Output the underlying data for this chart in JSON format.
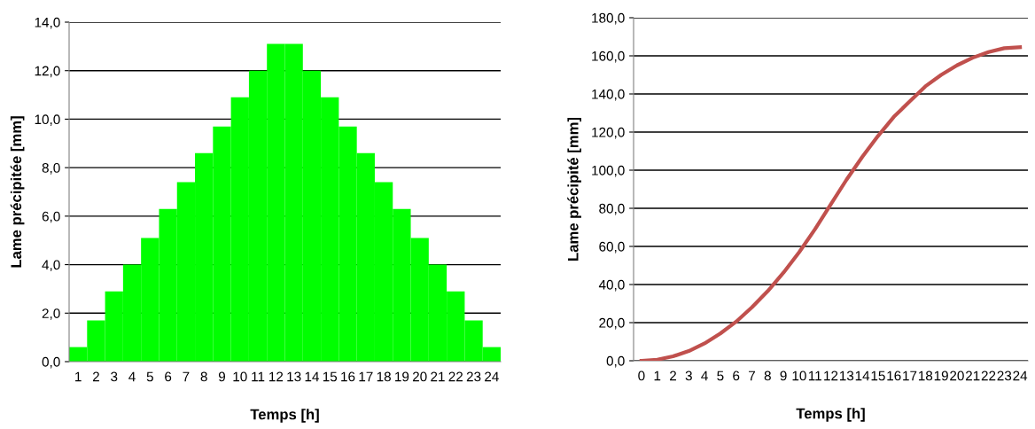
{
  "chart_data": [
    {
      "type": "bar",
      "xlabel": "Temps [h]",
      "ylabel": "Lame précipitée [mm]",
      "categories": [
        "1",
        "2",
        "3",
        "4",
        "5",
        "6",
        "7",
        "8",
        "9",
        "10",
        "11",
        "12",
        "13",
        "14",
        "15",
        "16",
        "17",
        "18",
        "19",
        "20",
        "21",
        "22",
        "23",
        "24"
      ],
      "values": [
        0.6,
        1.7,
        2.9,
        4.0,
        5.1,
        6.3,
        7.4,
        8.6,
        9.7,
        10.9,
        12.0,
        13.1,
        13.1,
        12.0,
        10.9,
        9.7,
        8.6,
        7.4,
        6.3,
        5.1,
        4.0,
        2.9,
        1.7,
        0.6
      ],
      "color": "#00ff00",
      "ylim": [
        0,
        14
      ],
      "yticks": [
        {
          "value": 0,
          "label": "0,0"
        },
        {
          "value": 2,
          "label": "2,0"
        },
        {
          "value": 4,
          "label": "4,0"
        },
        {
          "value": 6,
          "label": "6,0"
        },
        {
          "value": 8,
          "label": "8,0"
        },
        {
          "value": 10,
          "label": "10,0"
        },
        {
          "value": 12,
          "label": "12,0"
        },
        {
          "value": 14,
          "label": "14,0"
        }
      ],
      "grid": "y"
    },
    {
      "type": "line",
      "xlabel": "Temps [h]",
      "ylabel": "Lame précipité [mm]",
      "categories": [
        "0",
        "1",
        "2",
        "3",
        "4",
        "5",
        "6",
        "7",
        "8",
        "9",
        "10",
        "11",
        "12",
        "13",
        "14",
        "15",
        "16",
        "17",
        "18",
        "19",
        "20",
        "21",
        "22",
        "23",
        "24"
      ],
      "values": [
        0,
        0.6,
        2.3,
        5.1,
        9.1,
        14.3,
        20.5,
        28.0,
        36.5,
        46.2,
        57.0,
        69.0,
        82.0,
        95.0,
        107.0,
        118.0,
        128.0,
        136.0,
        144.0,
        150.0,
        155.0,
        159.0,
        162.0,
        164.0,
        164.5
      ],
      "color": "#c0504d",
      "marker": "none",
      "line_style": "solid",
      "ylim": [
        0,
        180
      ],
      "yticks": [
        {
          "value": 0,
          "label": "0,0"
        },
        {
          "value": 20,
          "label": "20,0"
        },
        {
          "value": 40,
          "label": "40,0"
        },
        {
          "value": 60,
          "label": "60,0"
        },
        {
          "value": 80,
          "label": "80,0"
        },
        {
          "value": 100,
          "label": "100,0"
        },
        {
          "value": 120,
          "label": "120,0"
        },
        {
          "value": 140,
          "label": "140,0"
        },
        {
          "value": 160,
          "label": "160,0"
        },
        {
          "value": 180,
          "label": "180,0"
        }
      ],
      "grid": "y"
    }
  ]
}
